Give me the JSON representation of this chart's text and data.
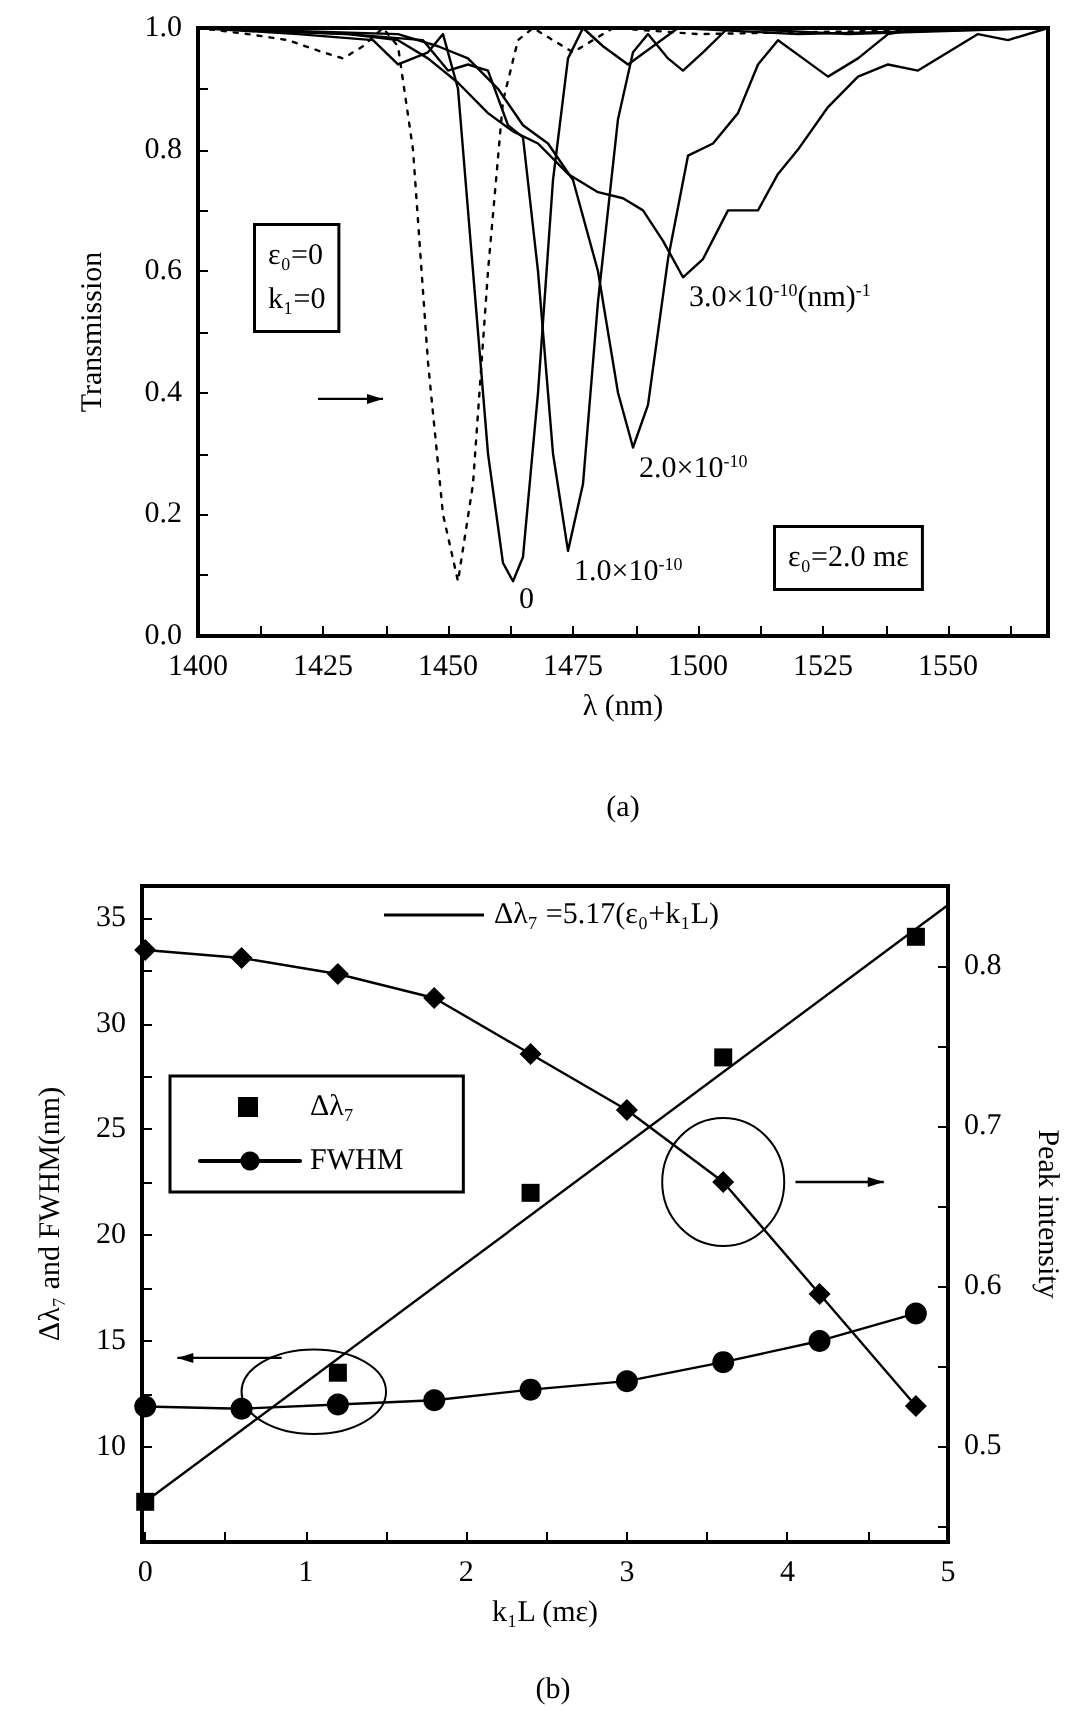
{
  "chart_data": [
    {
      "type": "line",
      "xlabel": "λ (nm)",
      "ylabel": "Transmission",
      "xlim": [
        1400,
        1570
      ],
      "ylim": [
        0,
        1.0
      ],
      "xticks": [
        1400,
        {
          "value": 1412.5,
          "label": null
        },
        1425,
        {
          "value": 1437.5,
          "label": null
        },
        1450,
        {
          "value": 1462.5,
          "label": null
        },
        1475,
        {
          "value": 1487.5,
          "label": null
        },
        1500,
        {
          "value": 1512.5,
          "label": null
        },
        1525,
        {
          "value": 1537.5,
          "label": null
        },
        1550,
        {
          "value": 1562.5,
          "label": null
        }
      ],
      "yticks": [
        {
          "value": 0,
          "label": "0.0"
        },
        {
          "value": 0.1,
          "label": null
        },
        0.2,
        {
          "value": 0.3,
          "label": null
        },
        0.4,
        {
          "value": 0.5,
          "label": null
        },
        0.6,
        {
          "value": 0.7,
          "label": null
        },
        0.8,
        {
          "value": 0.9,
          "label": null
        },
        {
          "value": 1.0,
          "label": "1.0"
        }
      ],
      "grid": false,
      "series": [
        {
          "color": "#000000",
          "line_style": "dotted",
          "marker": "none",
          "x": [
            1400,
            1410,
            1418,
            1425,
            1429,
            1433,
            1437,
            1440,
            1443,
            1446,
            1449,
            1452,
            1455,
            1458,
            1461,
            1464,
            1467,
            1471,
            1475,
            1479,
            1483,
            1500,
            1570
          ],
          "values": [
            1.0,
            0.99,
            0.98,
            0.96,
            0.95,
            0.97,
            1.0,
            0.97,
            0.8,
            0.45,
            0.2,
            0.09,
            0.25,
            0.6,
            0.88,
            0.98,
            1.0,
            0.98,
            0.96,
            0.98,
            1.0,
            0.99,
            1.0
          ]
        },
        {
          "color": "#000000",
          "line_style": "solid",
          "marker": "none",
          "x": [
            1400,
            1420,
            1435,
            1440,
            1446,
            1449,
            1452,
            1455,
            1458,
            1461,
            1463,
            1465,
            1468,
            1471,
            1474,
            1477,
            1481,
            1486,
            1491,
            1496,
            1520,
            1570
          ],
          "values": [
            1.0,
            0.99,
            0.98,
            0.94,
            0.96,
            0.99,
            0.9,
            0.6,
            0.3,
            0.12,
            0.09,
            0.13,
            0.4,
            0.75,
            0.95,
            1.0,
            0.97,
            0.94,
            0.97,
            1.0,
            0.99,
            1.0
          ]
        },
        {
          "color": "#000000",
          "line_style": "solid",
          "marker": "none",
          "x": [
            1400,
            1430,
            1445,
            1450,
            1454,
            1458,
            1462,
            1465,
            1468,
            1471,
            1474,
            1477,
            1480,
            1484,
            1487,
            1490,
            1494,
            1497,
            1501,
            1506,
            1530,
            1570
          ],
          "values": [
            1.0,
            0.99,
            0.98,
            0.93,
            0.94,
            0.93,
            0.84,
            0.82,
            0.6,
            0.3,
            0.14,
            0.25,
            0.55,
            0.85,
            0.96,
            0.99,
            0.95,
            0.93,
            0.96,
            1.0,
            0.99,
            1.0
          ]
        },
        {
          "color": "#000000",
          "line_style": "solid",
          "marker": "none",
          "x": [
            1400,
            1440,
            1448,
            1454,
            1460,
            1465,
            1470,
            1475,
            1480,
            1484,
            1487,
            1490,
            1494,
            1498,
            1503,
            1508,
            1512,
            1516,
            1521,
            1526,
            1532,
            1538,
            1545,
            1570
          ],
          "values": [
            1.0,
            0.99,
            0.97,
            0.95,
            0.9,
            0.84,
            0.81,
            0.75,
            0.6,
            0.4,
            0.31,
            0.38,
            0.62,
            0.79,
            0.81,
            0.86,
            0.94,
            0.98,
            0.95,
            0.92,
            0.95,
            0.99,
            1.0,
            1.0
          ]
        },
        {
          "color": "#000000",
          "line_style": "solid",
          "marker": "none",
          "x": [
            1400,
            1430,
            1440,
            1446,
            1452,
            1458,
            1463,
            1468,
            1474,
            1480,
            1485,
            1489,
            1493,
            1497,
            1501,
            1506,
            1512,
            1516,
            1520,
            1526,
            1532,
            1538,
            1544,
            1550,
            1556,
            1562,
            1570
          ],
          "values": [
            1.0,
            0.99,
            0.98,
            0.95,
            0.91,
            0.86,
            0.83,
            0.81,
            0.76,
            0.73,
            0.72,
            0.7,
            0.65,
            0.59,
            0.62,
            0.7,
            0.7,
            0.76,
            0.8,
            0.87,
            0.92,
            0.94,
            0.93,
            0.96,
            0.99,
            0.98,
            1.0
          ]
        }
      ],
      "annotations": [
        {
          "text": "0",
          "x": 1463,
          "y": 0.09
        },
        {
          "text": "1.0×10$^{-10}$",
          "x": 1474,
          "y": 0.14
        },
        {
          "text": "2.0×10$^{-10}$",
          "x": 1487,
          "y": 0.31
        },
        {
          "text": "3.0×10$^{-10}$(nm)$^{-1}$",
          "x": 1497,
          "y": 0.59
        },
        "ε₀=0\nk₁=0",
        "ε₀=2.0 mε",
        "(a)"
      ]
    },
    {
      "type": "line",
      "xlabel": "k₁L (mε)",
      "ylabel": "Δλ₇ and FWHM(nm)",
      "y2label": "Peak intensity",
      "xlim": [
        -0.02,
        5
      ],
      "ylim": [
        5.5,
        36.5
      ],
      "y2lim": [
        0.44,
        0.85
      ],
      "xticks": [
        0,
        {
          "value": 0.5,
          "label": null
        },
        1,
        {
          "value": 1.5,
          "label": null
        },
        2,
        {
          "value": 2.5,
          "label": null
        },
        3,
        {
          "value": 3.5,
          "label": null
        },
        4,
        {
          "value": 4.5,
          "label": null
        },
        5
      ],
      "yticks": [
        {
          "value": 7.5,
          "label": null
        },
        10,
        {
          "value": 12.5,
          "label": null
        },
        15,
        {
          "value": 17.5,
          "label": null
        },
        20,
        {
          "value": 22.5,
          "label": null
        },
        25,
        {
          "value": 27.5,
          "label": null
        },
        30,
        {
          "value": 32.5,
          "label": null
        },
        35
      ],
      "y2ticks": [
        {
          "value": 0.45,
          "label": null
        },
        0.5,
        {
          "value": 0.55,
          "label": null
        },
        0.6,
        {
          "value": 0.65,
          "label": null
        },
        0.7,
        {
          "value": 0.75,
          "label": null
        },
        0.8
      ],
      "grid": false,
      "legend": "left",
      "series": [
        {
          "name": "Δλ₇ =5.17(ε₀+k₁L)",
          "type": "line",
          "color": "#000000",
          "marker": "none",
          "line_style": "solid",
          "x": [
            0,
            5
          ],
          "values": [
            7.4,
            35.6
          ]
        },
        {
          "name": "Δλ₇",
          "type": "scatter",
          "color": "#000000",
          "marker": "square",
          "x": [
            0,
            1.2,
            2.4,
            3.6,
            4.8
          ],
          "values": [
            7.4,
            13.5,
            22.0,
            28.4,
            34.1
          ]
        },
        {
          "name": "FWHM",
          "type": "line",
          "color": "#000000",
          "marker": "circle",
          "line_style": "solid",
          "x": [
            0,
            0.6,
            1.2,
            1.8,
            2.4,
            3.0,
            3.6,
            4.2,
            4.8
          ],
          "values": [
            11.9,
            11.8,
            12.0,
            12.2,
            12.7,
            13.1,
            14.0,
            15.0,
            16.3
          ]
        },
        {
          "type": "line",
          "axis": "y2",
          "color": "#000000",
          "marker": "diamond",
          "line_style": "solid",
          "x": [
            0,
            0.6,
            1.2,
            1.8,
            2.4,
            3.0,
            3.6,
            4.2,
            4.8
          ],
          "values": [
            0.81,
            0.805,
            0.795,
            0.78,
            0.745,
            0.71,
            0.665,
            0.595,
            0.525
          ]
        }
      ],
      "annotations": [
        "(b)"
      ]
    }
  ]
}
